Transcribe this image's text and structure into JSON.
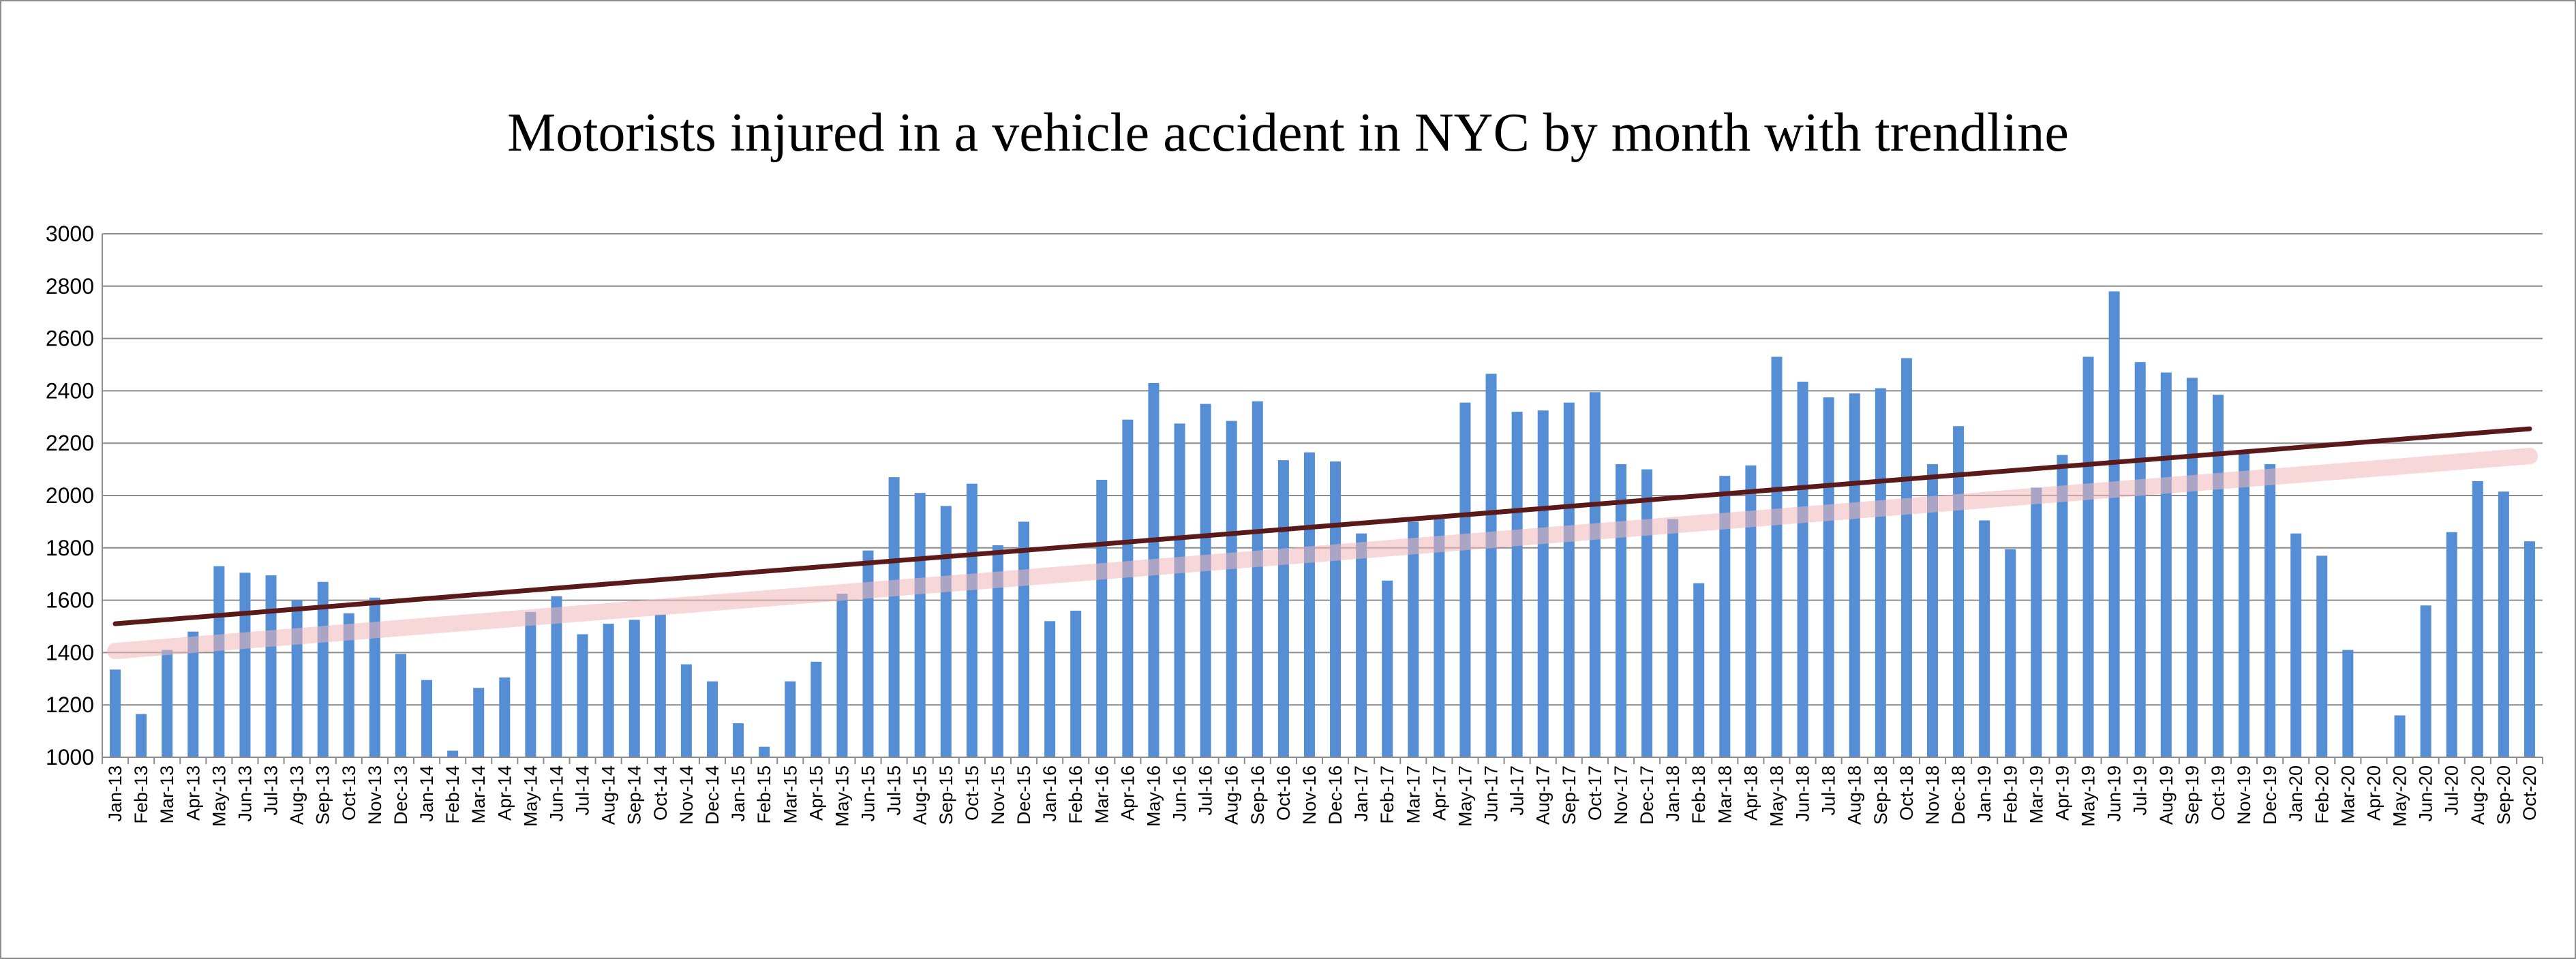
{
  "chart_data": {
    "type": "bar",
    "title": "Motorists injured in a vehicle accident in NYC by month with trendline",
    "xlabel": "",
    "ylabel": "",
    "ylim": [
      1000,
      3000
    ],
    "yticks": [
      1000,
      1200,
      1400,
      1600,
      1800,
      2000,
      2200,
      2400,
      2600,
      2800,
      3000
    ],
    "grid": true,
    "legend": "none",
    "categories": [
      "Jan-13",
      "Feb-13",
      "Mar-13",
      "Apr-13",
      "May-13",
      "Jun-13",
      "Jul-13",
      "Aug-13",
      "Sep-13",
      "Oct-13",
      "Nov-13",
      "Dec-13",
      "Jan-14",
      "Feb-14",
      "Mar-14",
      "Apr-14",
      "May-14",
      "Jun-14",
      "Jul-14",
      "Aug-14",
      "Sep-14",
      "Oct-14",
      "Nov-14",
      "Dec-14",
      "Jan-15",
      "Feb-15",
      "Mar-15",
      "Apr-15",
      "May-15",
      "Jun-15",
      "Jul-15",
      "Aug-15",
      "Sep-15",
      "Oct-15",
      "Nov-15",
      "Dec-15",
      "Jan-16",
      "Feb-16",
      "Mar-16",
      "Apr-16",
      "May-16",
      "Jun-16",
      "Jul-16",
      "Aug-16",
      "Sep-16",
      "Oct-16",
      "Nov-16",
      "Dec-16",
      "Jan-17",
      "Feb-17",
      "Mar-17",
      "Apr-17",
      "May-17",
      "Jun-17",
      "Jul-17",
      "Aug-17",
      "Sep-17",
      "Oct-17",
      "Nov-17",
      "Dec-17",
      "Jan-18",
      "Feb-18",
      "Mar-18",
      "Apr-18",
      "May-18",
      "Jun-18",
      "Jul-18",
      "Aug-18",
      "Sep-18",
      "Oct-18",
      "Nov-18",
      "Dec-18",
      "Jan-19",
      "Feb-19",
      "Mar-19",
      "Apr-19",
      "May-19",
      "Jun-19",
      "Jul-19",
      "Aug-19",
      "Sep-19",
      "Oct-19",
      "Nov-19",
      "Dec-19",
      "Jan-20",
      "Feb-20",
      "Mar-20",
      "Apr-20",
      "May-20",
      "Jun-20",
      "Jul-20",
      "Aug-20",
      "Sep-20",
      "Oct-20"
    ],
    "values": [
      1335,
      1165,
      1410,
      1480,
      1730,
      1705,
      1695,
      1600,
      1670,
      1550,
      1610,
      1395,
      1295,
      1025,
      1265,
      1305,
      1555,
      1615,
      1470,
      1510,
      1525,
      1545,
      1355,
      1290,
      1130,
      1040,
      1290,
      1365,
      1625,
      1790,
      2070,
      2010,
      1960,
      2045,
      1810,
      1900,
      1520,
      1560,
      2060,
      2290,
      2430,
      2275,
      2350,
      2285,
      2360,
      2135,
      2165,
      2130,
      1855,
      1675,
      1900,
      1910,
      2355,
      2465,
      2320,
      2325,
      2355,
      2395,
      2120,
      2100,
      1910,
      1665,
      2075,
      2115,
      2530,
      2435,
      2375,
      2390,
      2410,
      2525,
      2120,
      2265,
      1905,
      1795,
      2030,
      2155,
      2530,
      2780,
      2510,
      2470,
      2450,
      2385,
      2160,
      2120,
      1855,
      1770,
      1410,
      985,
      1160,
      1580,
      1860,
      2055,
      2015,
      1825
    ],
    "trendline": {
      "type": "linear",
      "start": 1510,
      "end": 2255
    },
    "colors": {
      "bar": "#558ed5",
      "trendline": "#5a1a1a",
      "trend_glow": "#f2b8b8",
      "grid": "#8c8c8c",
      "axis": "#8c8c8c"
    }
  }
}
